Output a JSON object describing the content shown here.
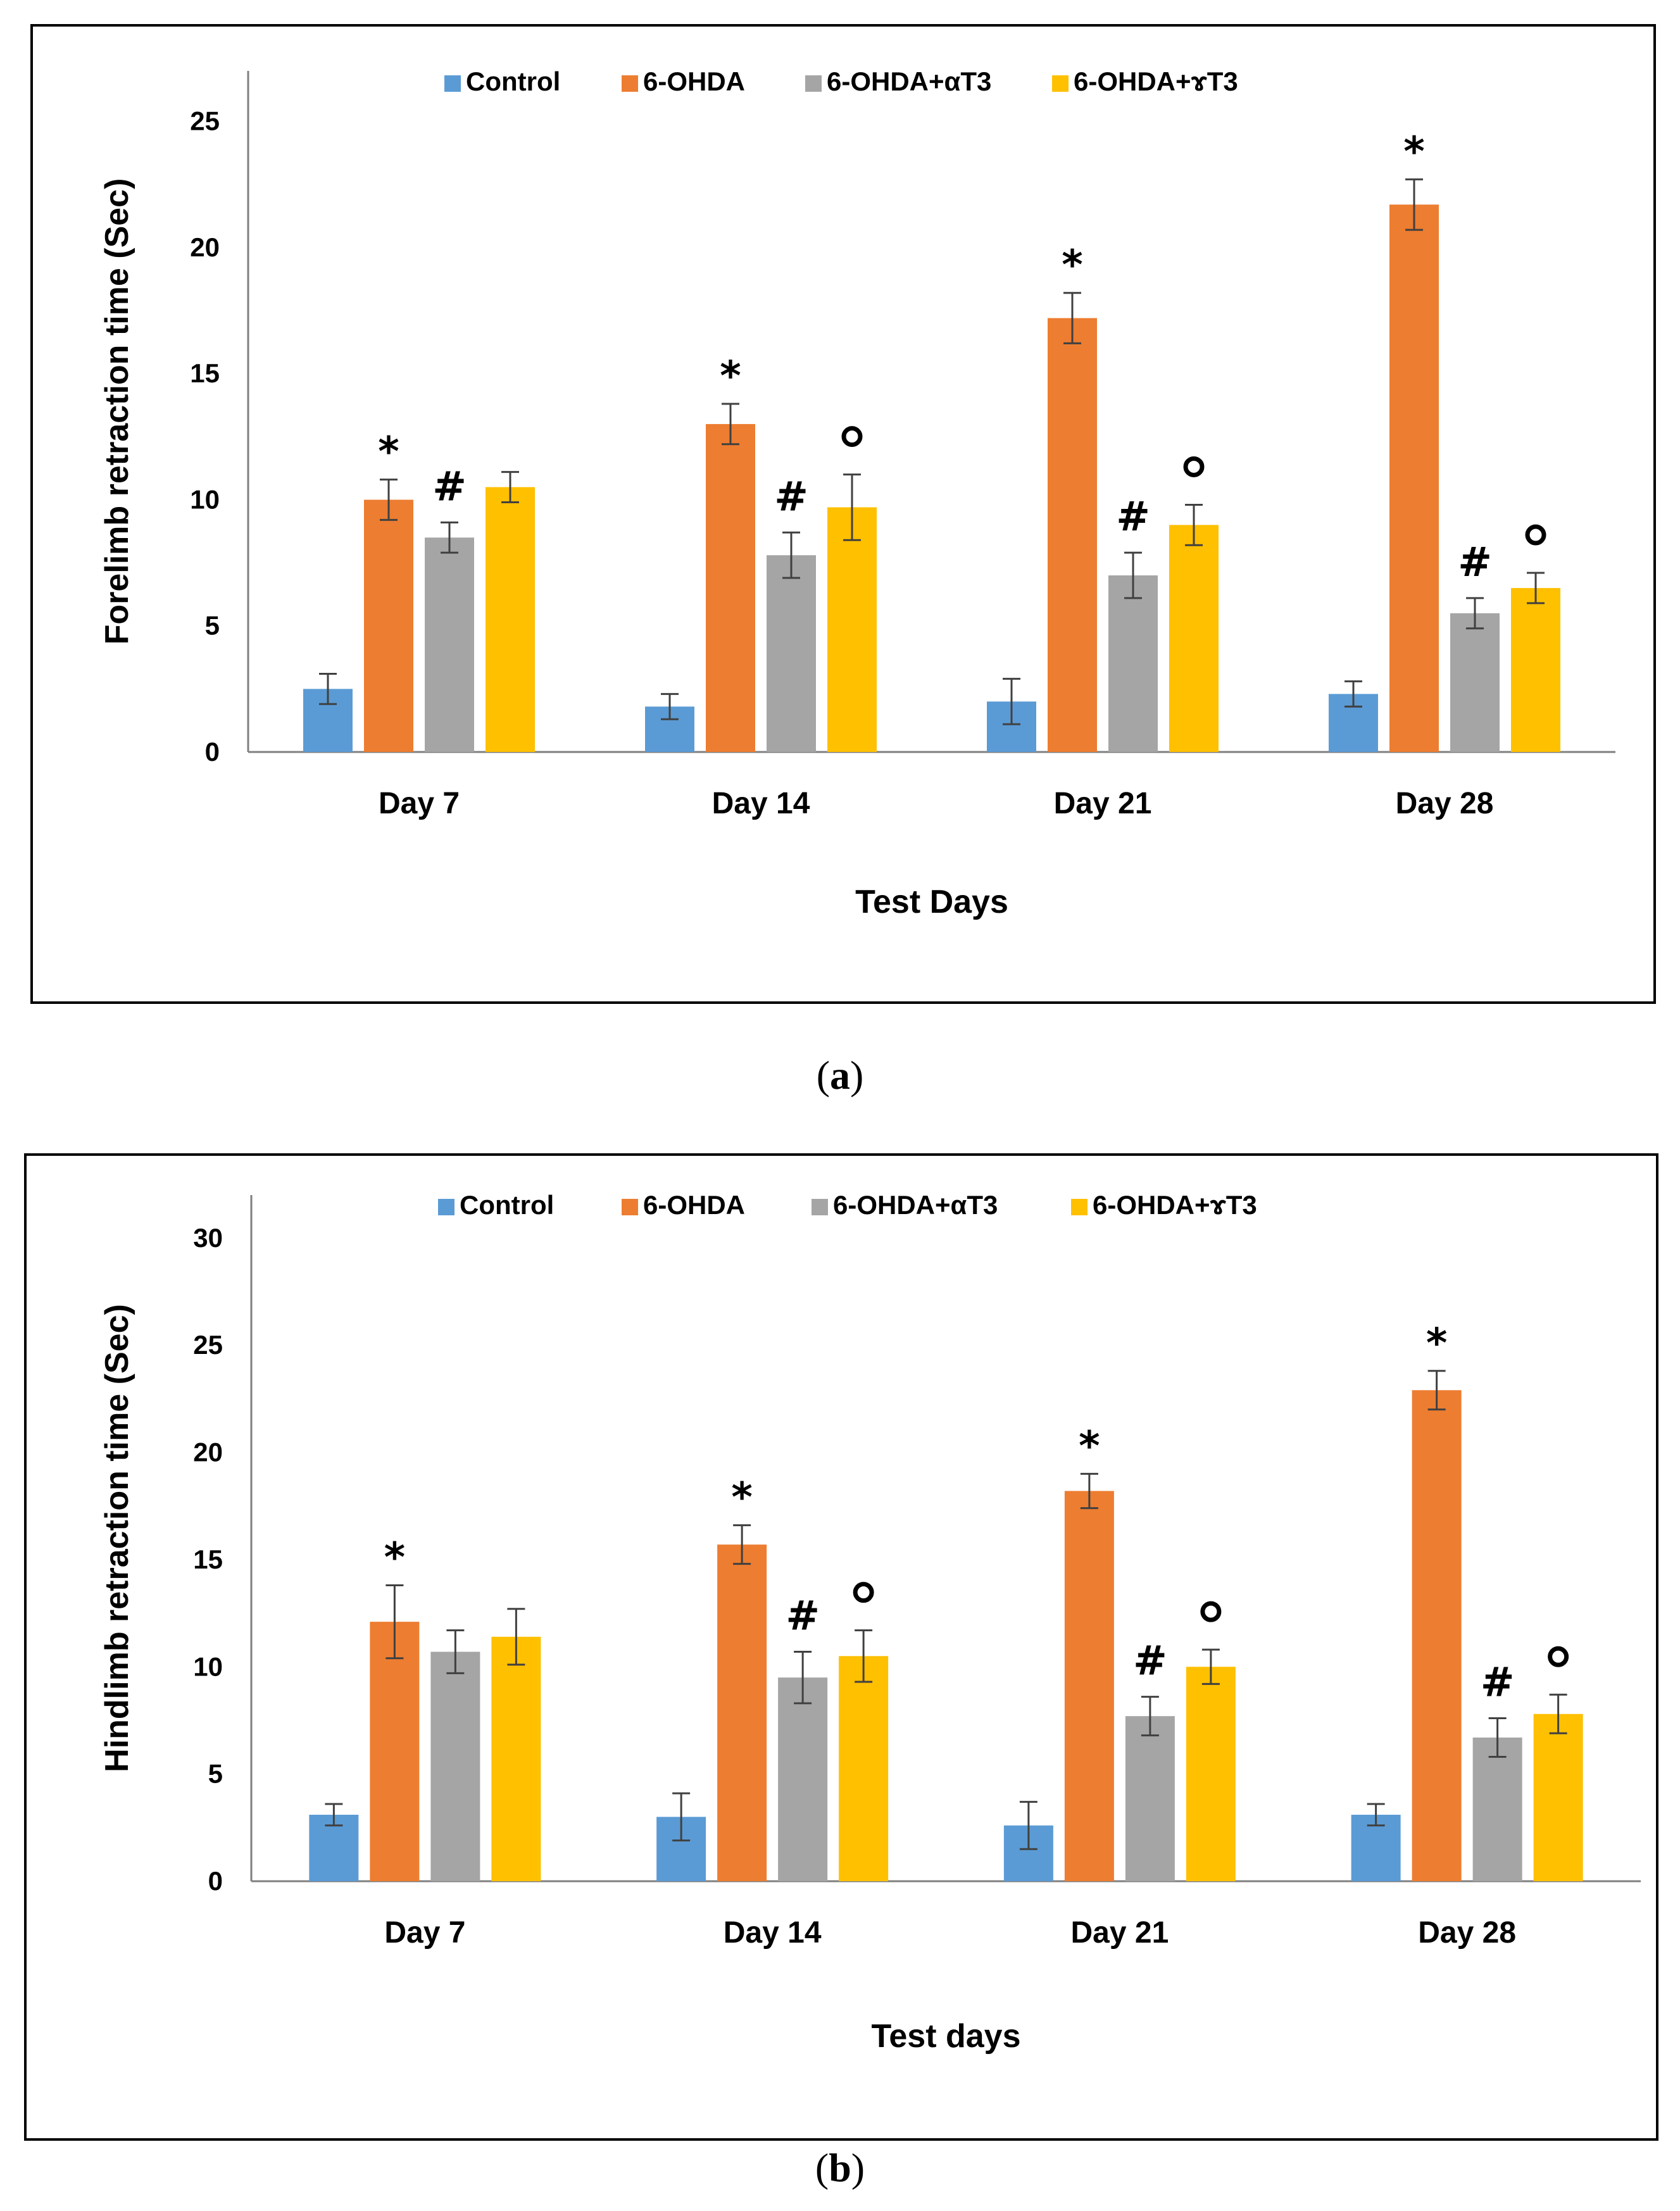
{
  "panels": [
    {
      "caption_open": "(",
      "caption_letter": "a",
      "caption_close": ")"
    },
    {
      "caption_open": "(",
      "caption_letter": "b",
      "caption_close": ")"
    }
  ],
  "chart_data": [
    {
      "type": "bar",
      "categories": [
        "Day 7",
        "Day 14",
        "Day 21",
        "Day 28"
      ],
      "xlabel": "Test Days",
      "ylabel": "Forelimb retraction time (Sec)",
      "ylim": [
        0,
        27
      ],
      "yticks": [
        0,
        5,
        10,
        15,
        20,
        25
      ],
      "legend_position": "top-center",
      "series": [
        {
          "name": "Control",
          "color": "#5b9bd5",
          "values": [
            2.5,
            1.8,
            2.0,
            2.3
          ],
          "errors": [
            0.6,
            0.5,
            0.9,
            0.5
          ],
          "marks": [
            "",
            "",
            "",
            ""
          ]
        },
        {
          "name": "6-OHDA",
          "color": "#ed7d31",
          "values": [
            10.0,
            13.0,
            17.2,
            21.7
          ],
          "errors": [
            0.8,
            0.8,
            1.0,
            1.0
          ],
          "marks": [
            "*",
            "*",
            "*",
            "*"
          ]
        },
        {
          "name": "6-OHDA+αT3",
          "color": "#a5a5a5",
          "values": [
            8.5,
            7.8,
            7.0,
            5.5
          ],
          "errors": [
            0.6,
            0.9,
            0.9,
            0.6
          ],
          "marks": [
            "#",
            "#",
            "#",
            "#"
          ]
        },
        {
          "name": "6-OHDA+ɤT3",
          "color": "#ffc000",
          "values": [
            10.5,
            9.7,
            9.0,
            6.5
          ],
          "errors": [
            0.6,
            1.3,
            0.8,
            0.6
          ],
          "marks": [
            "",
            "o",
            "o",
            "o"
          ]
        }
      ]
    },
    {
      "type": "bar",
      "categories": [
        "Day 7",
        "Day 14",
        "Day 21",
        "Day 28"
      ],
      "xlabel": "Test days",
      "ylabel": "Hindlimb retraction time (Sec)",
      "ylim": [
        0,
        32
      ],
      "yticks": [
        0,
        5,
        10,
        15,
        20,
        25,
        30
      ],
      "legend_position": "top-center",
      "series": [
        {
          "name": "Control",
          "color": "#5b9bd5",
          "values": [
            3.1,
            3.0,
            2.6,
            3.1
          ],
          "errors": [
            0.5,
            1.1,
            1.1,
            0.5
          ],
          "marks": [
            "",
            "",
            "",
            ""
          ]
        },
        {
          "name": "6-OHDA",
          "color": "#ed7d31",
          "values": [
            12.1,
            15.7,
            18.2,
            22.9
          ],
          "errors": [
            1.7,
            0.9,
            0.8,
            0.9
          ],
          "marks": [
            "*",
            "*",
            "*",
            "*"
          ]
        },
        {
          "name": "6-OHDA+αT3",
          "color": "#a5a5a5",
          "values": [
            10.7,
            9.5,
            7.7,
            6.7
          ],
          "errors": [
            1.0,
            1.2,
            0.9,
            0.9
          ],
          "marks": [
            "",
            "#",
            "#",
            "#"
          ]
        },
        {
          "name": "6-OHDA+ɤT3",
          "color": "#ffc000",
          "values": [
            11.4,
            10.5,
            10.0,
            7.8
          ],
          "errors": [
            1.3,
            1.2,
            0.8,
            0.9
          ],
          "marks": [
            "",
            "o",
            "o",
            "o"
          ]
        }
      ]
    }
  ]
}
